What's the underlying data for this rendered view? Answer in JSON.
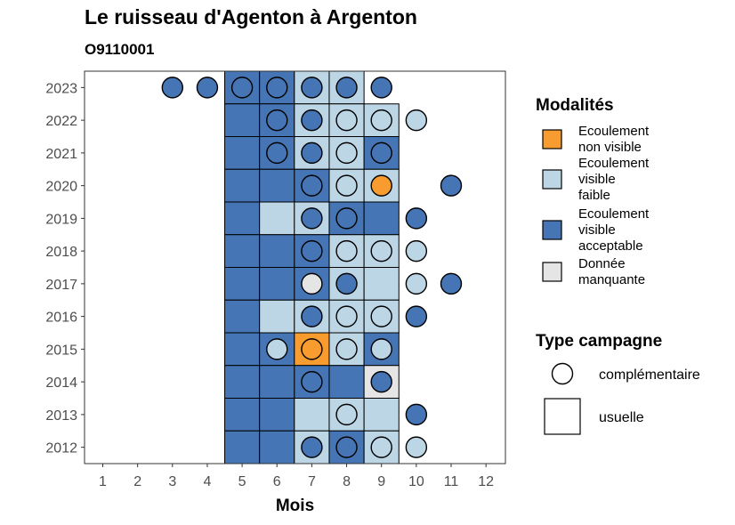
{
  "chart_data": {
    "type": "heatmap",
    "title": "Le ruisseau d'Agenton à Argenton",
    "subtitle": "O9110001",
    "xlabel": "Mois",
    "ylabel": "",
    "x_ticks": [
      "1",
      "2",
      "3",
      "4",
      "5",
      "6",
      "7",
      "8",
      "9",
      "10",
      "11",
      "12"
    ],
    "y_ticks": [
      "2012",
      "2013",
      "2014",
      "2015",
      "2016",
      "2017",
      "2018",
      "2019",
      "2020",
      "2021",
      "2022",
      "2023"
    ],
    "legend_modalites_title": "Modalités",
    "legend_modalites": [
      {
        "key": "ENV",
        "lines": [
          "Ecoulement",
          "non visible"
        ],
        "color": "#F89C2F"
      },
      {
        "key": "EVF",
        "lines": [
          "Ecoulement",
          "visible",
          "faible"
        ],
        "color": "#BDD6E6"
      },
      {
        "key": "EVA",
        "lines": [
          "Ecoulement",
          "visible",
          "acceptable"
        ],
        "color": "#4575B4"
      },
      {
        "key": "NA",
        "lines": [
          "Donnée",
          "manquante"
        ],
        "color": "#E5E5E5"
      }
    ],
    "legend_campagne_title": "Type campagne",
    "legend_campagne": [
      "complémentaire",
      "usuelle"
    ],
    "usuelle": [
      {
        "year": 2023,
        "month": 5,
        "mod": "EVA"
      },
      {
        "year": 2023,
        "month": 6,
        "mod": "EVA"
      },
      {
        "year": 2023,
        "month": 7,
        "mod": "EVF"
      },
      {
        "year": 2023,
        "month": 8,
        "mod": "EVF"
      },
      {
        "year": 2022,
        "month": 5,
        "mod": "EVA"
      },
      {
        "year": 2022,
        "month": 6,
        "mod": "EVA"
      },
      {
        "year": 2022,
        "month": 7,
        "mod": "EVF"
      },
      {
        "year": 2022,
        "month": 8,
        "mod": "EVF"
      },
      {
        "year": 2022,
        "month": 9,
        "mod": "EVF"
      },
      {
        "year": 2021,
        "month": 5,
        "mod": "EVA"
      },
      {
        "year": 2021,
        "month": 6,
        "mod": "EVA"
      },
      {
        "year": 2021,
        "month": 7,
        "mod": "EVF"
      },
      {
        "year": 2021,
        "month": 8,
        "mod": "EVF"
      },
      {
        "year": 2021,
        "month": 9,
        "mod": "EVA"
      },
      {
        "year": 2020,
        "month": 5,
        "mod": "EVA"
      },
      {
        "year": 2020,
        "month": 6,
        "mod": "EVA"
      },
      {
        "year": 2020,
        "month": 7,
        "mod": "EVA"
      },
      {
        "year": 2020,
        "month": 8,
        "mod": "EVF"
      },
      {
        "year": 2020,
        "month": 9,
        "mod": "EVF"
      },
      {
        "year": 2019,
        "month": 5,
        "mod": "EVA"
      },
      {
        "year": 2019,
        "month": 6,
        "mod": "EVF"
      },
      {
        "year": 2019,
        "month": 7,
        "mod": "EVF"
      },
      {
        "year": 2019,
        "month": 8,
        "mod": "EVA"
      },
      {
        "year": 2019,
        "month": 9,
        "mod": "EVA"
      },
      {
        "year": 2018,
        "month": 5,
        "mod": "EVA"
      },
      {
        "year": 2018,
        "month": 6,
        "mod": "EVA"
      },
      {
        "year": 2018,
        "month": 7,
        "mod": "EVA"
      },
      {
        "year": 2018,
        "month": 8,
        "mod": "EVF"
      },
      {
        "year": 2018,
        "month": 9,
        "mod": "EVF"
      },
      {
        "year": 2017,
        "month": 5,
        "mod": "EVA"
      },
      {
        "year": 2017,
        "month": 6,
        "mod": "EVA"
      },
      {
        "year": 2017,
        "month": 7,
        "mod": "EVA"
      },
      {
        "year": 2017,
        "month": 8,
        "mod": "EVF"
      },
      {
        "year": 2017,
        "month": 9,
        "mod": "EVF"
      },
      {
        "year": 2016,
        "month": 5,
        "mod": "EVA"
      },
      {
        "year": 2016,
        "month": 6,
        "mod": "EVF"
      },
      {
        "year": 2016,
        "month": 7,
        "mod": "EVF"
      },
      {
        "year": 2016,
        "month": 8,
        "mod": "EVF"
      },
      {
        "year": 2016,
        "month": 9,
        "mod": "EVF"
      },
      {
        "year": 2015,
        "month": 5,
        "mod": "EVA"
      },
      {
        "year": 2015,
        "month": 6,
        "mod": "EVA"
      },
      {
        "year": 2015,
        "month": 7,
        "mod": "ENV"
      },
      {
        "year": 2015,
        "month": 8,
        "mod": "EVF"
      },
      {
        "year": 2015,
        "month": 9,
        "mod": "EVA"
      },
      {
        "year": 2014,
        "month": 5,
        "mod": "EVA"
      },
      {
        "year": 2014,
        "month": 6,
        "mod": "EVA"
      },
      {
        "year": 2014,
        "month": 7,
        "mod": "EVA"
      },
      {
        "year": 2014,
        "month": 8,
        "mod": "EVA"
      },
      {
        "year": 2014,
        "month": 9,
        "mod": "NA"
      },
      {
        "year": 2013,
        "month": 5,
        "mod": "EVA"
      },
      {
        "year": 2013,
        "month": 6,
        "mod": "EVA"
      },
      {
        "year": 2013,
        "month": 7,
        "mod": "EVF"
      },
      {
        "year": 2013,
        "month": 8,
        "mod": "EVF"
      },
      {
        "year": 2013,
        "month": 9,
        "mod": "EVF"
      },
      {
        "year": 2012,
        "month": 5,
        "mod": "EVA"
      },
      {
        "year": 2012,
        "month": 6,
        "mod": "EVA"
      },
      {
        "year": 2012,
        "month": 7,
        "mod": "EVF"
      },
      {
        "year": 2012,
        "month": 8,
        "mod": "EVA"
      },
      {
        "year": 2012,
        "month": 9,
        "mod": "EVF"
      }
    ],
    "complementaire": [
      {
        "year": 2023,
        "month": 3,
        "mod": "EVA"
      },
      {
        "year": 2023,
        "month": 4,
        "mod": "EVA"
      },
      {
        "year": 2023,
        "month": 5,
        "mod": "EVA"
      },
      {
        "year": 2023,
        "month": 6,
        "mod": "EVA"
      },
      {
        "year": 2023,
        "month": 7,
        "mod": "EVA"
      },
      {
        "year": 2023,
        "month": 8,
        "mod": "EVA"
      },
      {
        "year": 2023,
        "month": 9,
        "mod": "EVA"
      },
      {
        "year": 2022,
        "month": 6,
        "mod": "EVA"
      },
      {
        "year": 2022,
        "month": 7,
        "mod": "EVA"
      },
      {
        "year": 2022,
        "month": 8,
        "mod": "EVF"
      },
      {
        "year": 2022,
        "month": 9,
        "mod": "EVF"
      },
      {
        "year": 2022,
        "month": 10,
        "mod": "EVF"
      },
      {
        "year": 2021,
        "month": 6,
        "mod": "EVA"
      },
      {
        "year": 2021,
        "month": 7,
        "mod": "EVA"
      },
      {
        "year": 2021,
        "month": 8,
        "mod": "EVF"
      },
      {
        "year": 2021,
        "month": 9,
        "mod": "EVA"
      },
      {
        "year": 2020,
        "month": 7,
        "mod": "EVA"
      },
      {
        "year": 2020,
        "month": 8,
        "mod": "EVF"
      },
      {
        "year": 2020,
        "month": 9,
        "mod": "ENV"
      },
      {
        "year": 2020,
        "month": 11,
        "mod": "EVA"
      },
      {
        "year": 2019,
        "month": 7,
        "mod": "EVA"
      },
      {
        "year": 2019,
        "month": 8,
        "mod": "EVA"
      },
      {
        "year": 2019,
        "month": 10,
        "mod": "EVA"
      },
      {
        "year": 2018,
        "month": 7,
        "mod": "EVA"
      },
      {
        "year": 2018,
        "month": 8,
        "mod": "EVF"
      },
      {
        "year": 2018,
        "month": 9,
        "mod": "EVF"
      },
      {
        "year": 2018,
        "month": 10,
        "mod": "EVF"
      },
      {
        "year": 2017,
        "month": 7,
        "mod": "NA"
      },
      {
        "year": 2017,
        "month": 8,
        "mod": "EVA"
      },
      {
        "year": 2017,
        "month": 10,
        "mod": "EVF"
      },
      {
        "year": 2017,
        "month": 11,
        "mod": "EVA"
      },
      {
        "year": 2016,
        "month": 7,
        "mod": "EVA"
      },
      {
        "year": 2016,
        "month": 8,
        "mod": "EVF"
      },
      {
        "year": 2016,
        "month": 9,
        "mod": "EVF"
      },
      {
        "year": 2016,
        "month": 10,
        "mod": "EVA"
      },
      {
        "year": 2015,
        "month": 6,
        "mod": "EVF"
      },
      {
        "year": 2015,
        "month": 7,
        "mod": "ENV"
      },
      {
        "year": 2015,
        "month": 8,
        "mod": "EVF"
      },
      {
        "year": 2015,
        "month": 9,
        "mod": "EVF"
      },
      {
        "year": 2014,
        "month": 7,
        "mod": "EVA"
      },
      {
        "year": 2014,
        "month": 9,
        "mod": "EVA"
      },
      {
        "year": 2013,
        "month": 8,
        "mod": "EVF"
      },
      {
        "year": 2013,
        "month": 10,
        "mod": "EVA"
      },
      {
        "year": 2012,
        "month": 7,
        "mod": "EVA"
      },
      {
        "year": 2012,
        "month": 8,
        "mod": "EVA"
      },
      {
        "year": 2012,
        "month": 9,
        "mod": "EVF"
      },
      {
        "year": 2012,
        "month": 10,
        "mod": "EVF"
      }
    ]
  }
}
